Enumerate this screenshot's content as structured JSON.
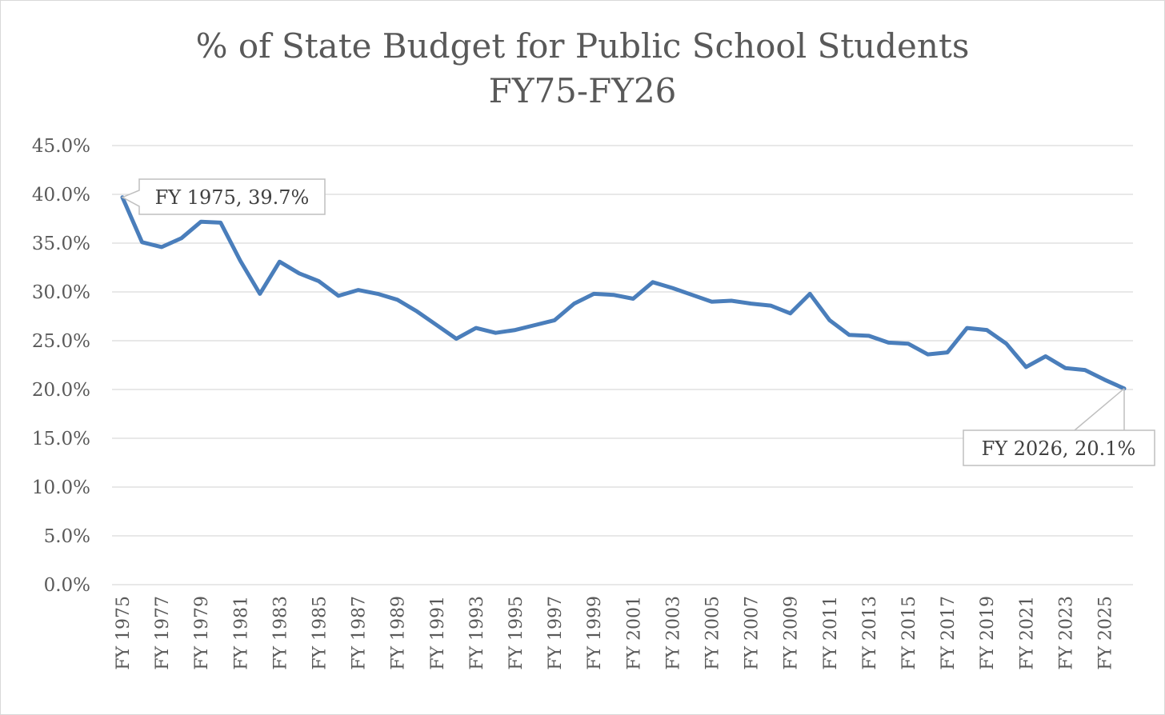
{
  "chart_data": {
    "type": "line",
    "title": [
      "% of State Budget for Public School Students",
      "FY75-FY26"
    ],
    "xlabel": "",
    "ylabel": "",
    "ylim": [
      0,
      0.45
    ],
    "y_ticks": [
      "0.0%",
      "5.0%",
      "10.0%",
      "15.0%",
      "20.0%",
      "25.0%",
      "30.0%",
      "35.0%",
      "40.0%",
      "45.0%"
    ],
    "x_tick_labels": [
      "FY 1975",
      "FY 1977",
      "FY 1979",
      "FY 1981",
      "FY 1983",
      "FY 1985",
      "FY 1987",
      "FY 1989",
      "FY 1991",
      "FY 1993",
      "FY 1995",
      "FY 1997",
      "FY 1999",
      "FY 2001",
      "FY 2003",
      "FY 2005",
      "FY 2007",
      "FY 2009",
      "FY 2011",
      "FY 2013",
      "FY 2015",
      "FY 2017",
      "FY 2019",
      "FY 2021",
      "FY 2023",
      "FY 2025"
    ],
    "grid": true,
    "series": [
      {
        "name": "% of State Budget for Public School Students",
        "color": "#4a7ebb",
        "x": [
          1975,
          1976,
          1977,
          1978,
          1979,
          1980,
          1981,
          1982,
          1983,
          1984,
          1985,
          1986,
          1987,
          1988,
          1989,
          1990,
          1991,
          1992,
          1993,
          1994,
          1995,
          1996,
          1997,
          1998,
          1999,
          2000,
          2001,
          2002,
          2003,
          2004,
          2005,
          2006,
          2007,
          2008,
          2009,
          2010,
          2011,
          2012,
          2013,
          2014,
          2015,
          2016,
          2017,
          2018,
          2019,
          2020,
          2021,
          2022,
          2023,
          2024,
          2025,
          2026
        ],
        "values": [
          0.397,
          0.351,
          0.346,
          0.355,
          0.372,
          0.371,
          0.332,
          0.298,
          0.331,
          0.319,
          0.311,
          0.296,
          0.302,
          0.298,
          0.292,
          0.28,
          0.266,
          0.252,
          0.263,
          0.258,
          0.261,
          0.266,
          0.271,
          0.288,
          0.298,
          0.297,
          0.293,
          0.31,
          0.304,
          0.297,
          0.29,
          0.291,
          0.288,
          0.286,
          0.278,
          0.298,
          0.271,
          0.256,
          0.255,
          0.248,
          0.247,
          0.236,
          0.238,
          0.263,
          0.261,
          0.247,
          0.223,
          0.234,
          0.222,
          0.22,
          0.21,
          0.201
        ]
      }
    ],
    "annotations": [
      {
        "label": "FY 1975, 39.7%",
        "x": 1975,
        "value": 0.397
      },
      {
        "label": "FY 2026, 20.1%",
        "x": 2026,
        "value": 0.201
      }
    ]
  }
}
